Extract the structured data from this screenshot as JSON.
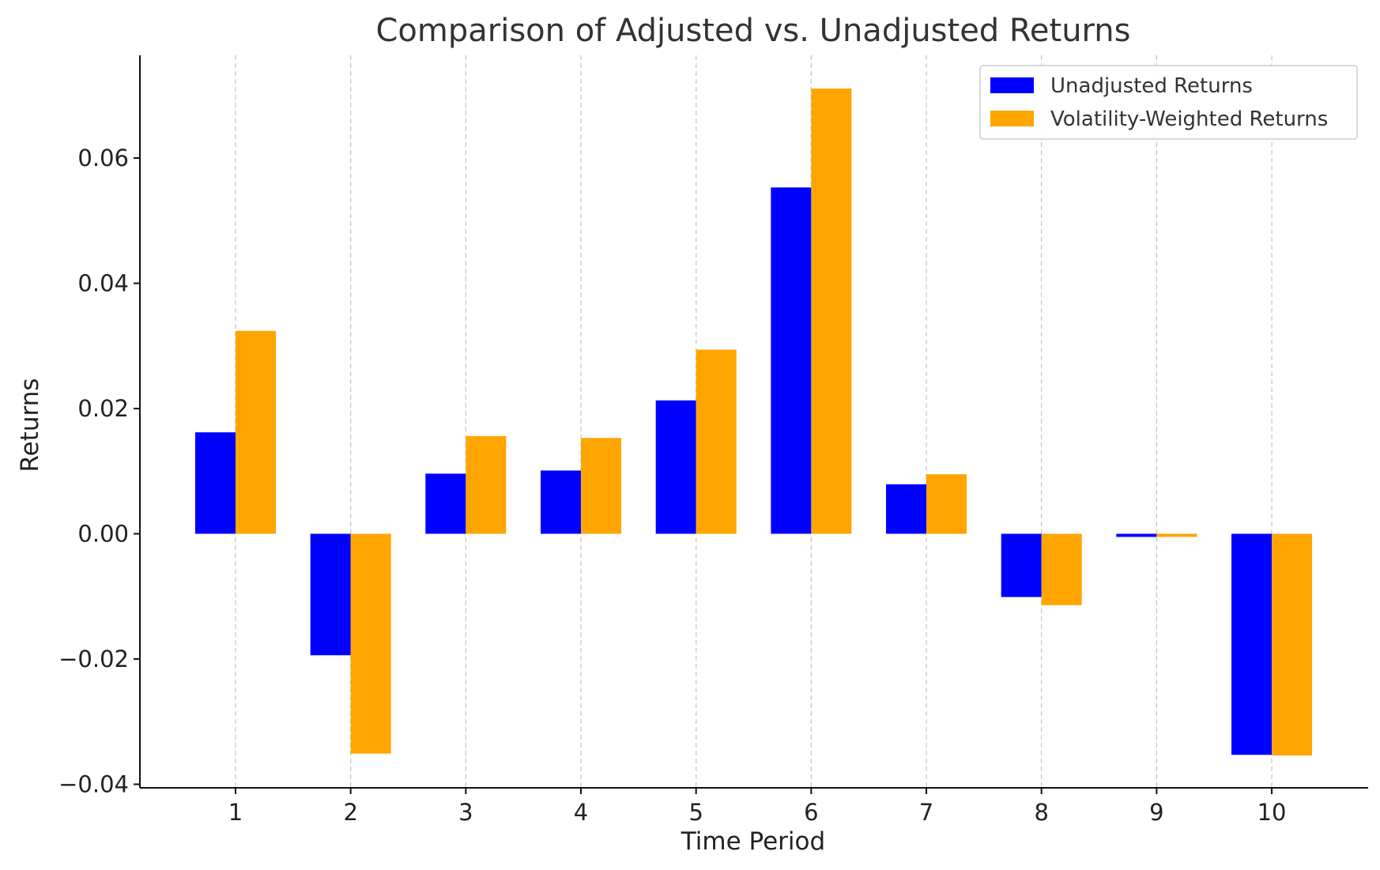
{
  "chart_data": {
    "type": "bar",
    "title": "Comparison of Adjusted vs. Unadjusted Returns",
    "xlabel": "Time Period",
    "ylabel": "Returns",
    "categories": [
      "1",
      "2",
      "3",
      "4",
      "5",
      "6",
      "7",
      "8",
      "9",
      "10"
    ],
    "series": [
      {
        "name": "Unadjusted Returns",
        "color": "#0000ff",
        "values": [
          0.0162,
          -0.0194,
          0.0096,
          0.0101,
          0.0213,
          0.0553,
          0.0079,
          -0.0101,
          -0.0005,
          -0.0353
        ]
      },
      {
        "name": "Volatility-Weighted Returns",
        "color": "#ffa500",
        "values": [
          0.0324,
          -0.0351,
          0.0156,
          0.0153,
          0.0294,
          0.0711,
          0.0095,
          -0.0114,
          -0.0005,
          -0.0354
        ]
      }
    ],
    "yticks": [
      "0.06",
      "0.04",
      "0.02",
      "0.00",
      "−0.02",
      "−0.04"
    ],
    "ytick_values": [
      0.06,
      0.04,
      0.02,
      0.0,
      -0.02,
      -0.04
    ],
    "ylim": [
      -0.0405,
      0.0765
    ],
    "grid": "vertical dashed",
    "legend_position": "top-right"
  }
}
